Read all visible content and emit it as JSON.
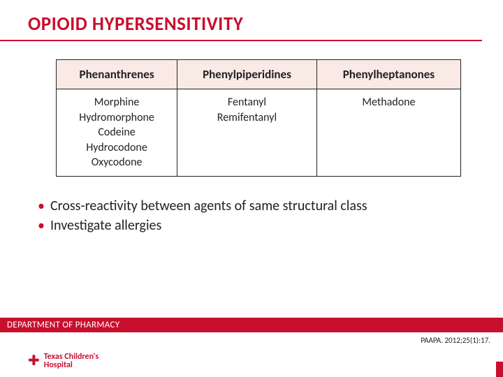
{
  "title": "OPIOID HYPERSENSITIVITY",
  "table": {
    "headers": [
      "Phenanthrenes",
      "Phenylpiperidines",
      "Phenylheptanones"
    ],
    "rows": [
      [
        "Morphine\nHydromorphone\nCodeine\nHydrocodone\nOxycodone",
        "Fentanyl\nRemifentanyl",
        "Methadone"
      ]
    ],
    "header_bg": "#f9eae6",
    "border_color": "#222222",
    "header_fontsize": 17,
    "cell_fontsize": 16
  },
  "bullets": [
    "Cross-reactivity between agents of same structural class",
    "Investigate allergies"
  ],
  "footer": "DEPARTMENT OF PHARMACY",
  "citation": "PAAPA. 2012;25(1):17.",
  "logo": {
    "line1": "Texas Children's",
    "line2": "Hospital"
  },
  "colors": {
    "brand": "#c8102e",
    "text": "#222222",
    "bg": "#ffffff"
  }
}
